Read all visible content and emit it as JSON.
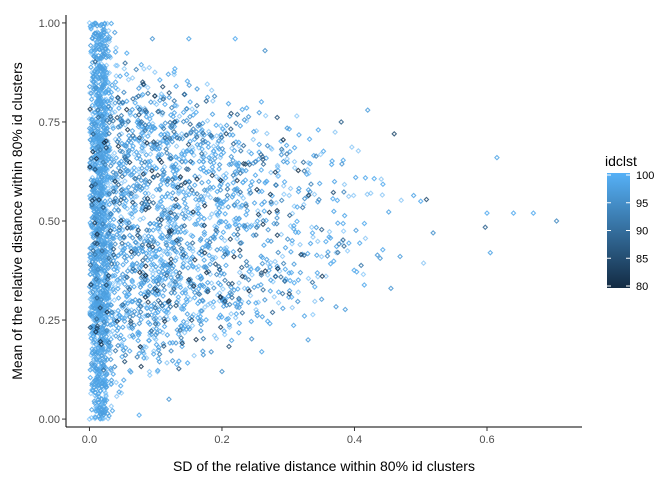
{
  "chart_data": {
    "type": "scatter",
    "title": "",
    "xlabel": "SD of the relative distance within 80% id clusters",
    "ylabel": "Mean  of the relative distance within 80% id clusters",
    "xlim": [
      -0.0354,
      0.7434
    ],
    "ylim": [
      -0.02,
      1.02
    ],
    "x_ticks": [
      0.0,
      0.2,
      0.4,
      0.6
    ],
    "x_tick_labels": [
      "0.0",
      "0.2",
      "0.4",
      "0.6"
    ],
    "y_ticks": [
      0.0,
      0.25,
      0.5,
      0.75,
      1.0
    ],
    "y_tick_labels": [
      "0.00",
      "0.25",
      "0.50",
      "0.75",
      "1.00"
    ],
    "grid": false,
    "point_shape": "diamond",
    "color_legend": {
      "title": "idclst",
      "position": "right",
      "min": 80,
      "max": 100,
      "ticks": [
        80,
        85,
        90,
        95,
        100
      ],
      "tick_labels": [
        "80",
        "85",
        "90",
        "95",
        "100"
      ],
      "low_color": "#132B43",
      "high_color": "#56B1F7"
    },
    "n_points_shown": 3400,
    "distribution": "points fill a triangle-shaped envelope: x from 0.00 up to about 0.71; at x = 0 the mean spans 0.00–1.00, the spread narrows toward 0.50 as x grows; dense vertical band at x ≈ 0.00–0.03; most points near idclst 100 (light blue) with scattered darker points down to 80",
    "sample_points": [
      {
        "x": 0.0,
        "y": 1.0,
        "idclst": 100
      },
      {
        "x": 0.0,
        "y": 0.0,
        "idclst": 100
      },
      {
        "x": 0.095,
        "y": 0.96,
        "idclst": 96
      },
      {
        "x": 0.15,
        "y": 0.96,
        "idclst": 98
      },
      {
        "x": 0.22,
        "y": 0.96,
        "idclst": 99
      },
      {
        "x": 0.265,
        "y": 0.93,
        "idclst": 95
      },
      {
        "x": 0.38,
        "y": 0.75,
        "idclst": 88
      },
      {
        "x": 0.42,
        "y": 0.78,
        "idclst": 97
      },
      {
        "x": 0.46,
        "y": 0.72,
        "idclst": 85
      },
      {
        "x": 0.5,
        "y": 0.55,
        "idclst": 99
      },
      {
        "x": 0.6,
        "y": 0.52,
        "idclst": 99
      },
      {
        "x": 0.615,
        "y": 0.66,
        "idclst": 98
      },
      {
        "x": 0.64,
        "y": 0.52,
        "idclst": 99
      },
      {
        "x": 0.67,
        "y": 0.52,
        "idclst": 99
      },
      {
        "x": 0.705,
        "y": 0.5,
        "idclst": 94
      },
      {
        "x": 0.605,
        "y": 0.42,
        "idclst": 98
      },
      {
        "x": 0.455,
        "y": 0.33,
        "idclst": 96
      },
      {
        "x": 0.33,
        "y": 0.2,
        "idclst": 97
      },
      {
        "x": 0.26,
        "y": 0.17,
        "idclst": 98
      },
      {
        "x": 0.2,
        "y": 0.12,
        "idclst": 95
      },
      {
        "x": 0.12,
        "y": 0.05,
        "idclst": 96
      },
      {
        "x": 0.075,
        "y": 0.01,
        "idclst": 99
      }
    ]
  }
}
